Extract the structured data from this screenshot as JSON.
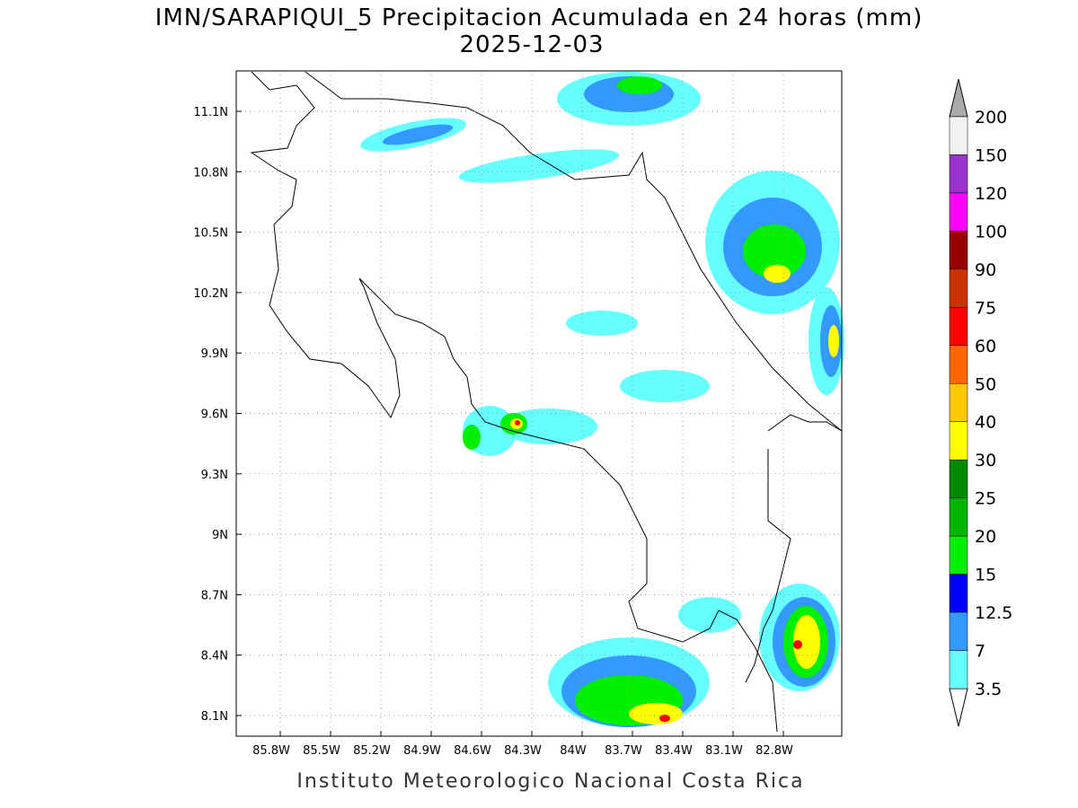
{
  "title": "IMN/SARAPIQUI_5 Precipitacion Acumulada en 24 horas (mm)",
  "subtitle": "2025-12-03",
  "footer": "Instituto Meteorologico Nacional Costa Rica",
  "x_ticks": [
    "85.8W",
    "85.5W",
    "85.2W",
    "84.9W",
    "84.6W",
    "84.3W",
    "84W",
    "83.7W",
    "83.4W",
    "83.1W",
    "82.8W"
  ],
  "y_ticks": [
    "11.1N",
    "10.8N",
    "10.5N",
    "10.2N",
    "9.9N",
    "9.6N",
    "9.3N",
    "9N",
    "8.7N",
    "8.4N",
    "8.1N"
  ],
  "colorbar": {
    "labels": [
      "200",
      "150",
      "120",
      "100",
      "90",
      "75",
      "60",
      "50",
      "40",
      "30",
      "25",
      "20",
      "15",
      "12.5",
      "7",
      "3.5"
    ],
    "colors": [
      "#f2f2f2",
      "#9933cc",
      "#ff00ff",
      "#990000",
      "#cc3300",
      "#ff0000",
      "#ff6600",
      "#ffc800",
      "#ffff00",
      "#008800",
      "#00b400",
      "#00f000",
      "#0000ff",
      "#3399ff",
      "#66ffff"
    ]
  }
}
